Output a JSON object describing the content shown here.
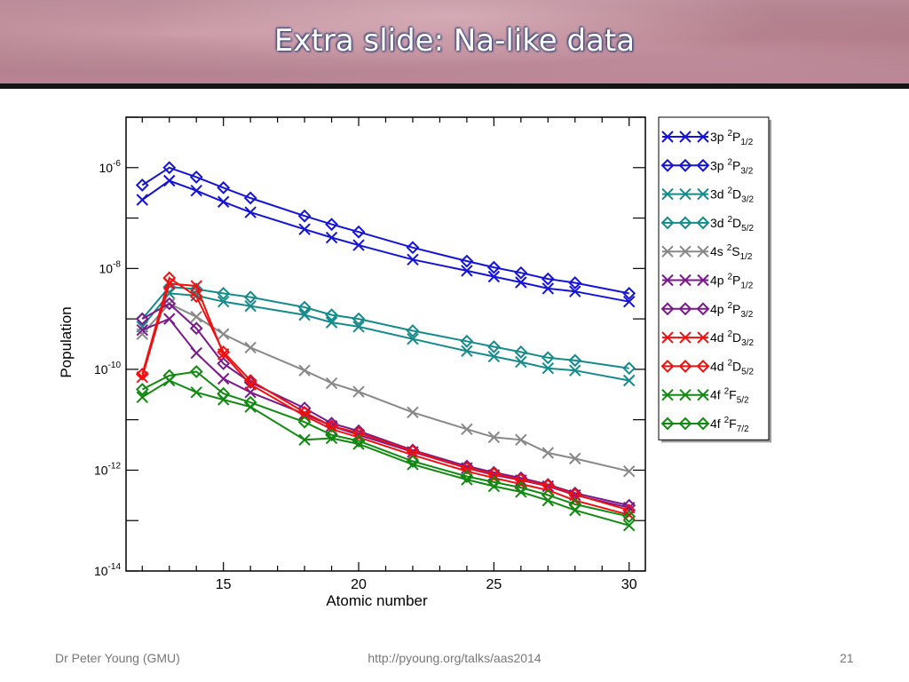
{
  "slide": {
    "title": "Extra slide: Na-like data",
    "footer_left": "Dr Peter Young (GMU)",
    "footer_center": "http://pyoung.org/talks/aas2014",
    "footer_right": "21"
  },
  "chart_data": {
    "type": "line",
    "xlabel": "Atomic number",
    "ylabel": "Population",
    "xlim": [
      11.4,
      30.6
    ],
    "ylim": [
      1e-14,
      1e-05
    ],
    "yscale": "log",
    "x_ticks": [
      15,
      20,
      25,
      30
    ],
    "y_tick_exponents": [
      -14,
      -12,
      -10,
      -8,
      -6
    ],
    "legend_position": "right, outside plot",
    "series": [
      {
        "name": "3p ²P₁/₂",
        "label": {
          "main": "3p ",
          "sup": "2",
          "letter": "P",
          "sub": "1/2"
        },
        "color": "#1414d2",
        "marker": "x",
        "x": [
          12,
          13,
          14,
          15,
          16,
          18,
          19,
          20,
          22,
          24,
          25,
          26,
          27,
          28,
          30
        ],
        "y": [
          2.3e-07,
          5.5e-07,
          3.5e-07,
          2.1e-07,
          1.3e-07,
          6e-08,
          4.1e-08,
          2.9e-08,
          1.5e-08,
          9e-09,
          6.9e-09,
          5.3e-09,
          4e-09,
          3.5e-09,
          2.2e-09
        ]
      },
      {
        "name": "3p ²P₃/₂",
        "label": {
          "main": "3p ",
          "sup": "2",
          "letter": "P",
          "sub": "3/2"
        },
        "color": "#1414d2",
        "marker": "diamond",
        "x": [
          12,
          13,
          14,
          15,
          16,
          18,
          19,
          20,
          22,
          24,
          25,
          26,
          27,
          28,
          30
        ],
        "y": [
          4.5e-07,
          1e-06,
          6.5e-07,
          4e-07,
          2.5e-07,
          1.1e-07,
          7.5e-08,
          5.3e-08,
          2.6e-08,
          1.4e-08,
          1.05e-08,
          8.2e-09,
          6.2e-09,
          5.2e-09,
          3.2e-09
        ]
      },
      {
        "name": "3d ²D₃/₂",
        "label": {
          "main": "3d ",
          "sup": "2",
          "letter": "D",
          "sub": "3/2"
        },
        "color": "#178a8a",
        "marker": "x",
        "x": [
          12,
          13,
          14,
          15,
          16,
          18,
          19,
          20,
          22,
          24,
          25,
          26,
          27,
          28,
          30
        ],
        "y": [
          7e-10,
          3.2e-09,
          2.9e-09,
          2.2e-09,
          1.8e-09,
          1.2e-09,
          8.5e-10,
          7e-10,
          4e-10,
          2.3e-10,
          1.8e-10,
          1.4e-10,
          1.05e-10,
          9.5e-11,
          6e-11
        ]
      },
      {
        "name": "3d ²D₅/₂",
        "label": {
          "main": "3d ",
          "sup": "2",
          "letter": "D",
          "sub": "5/2"
        },
        "color": "#178a8a",
        "marker": "diamond",
        "x": [
          12,
          13,
          14,
          15,
          16,
          18,
          19,
          20,
          22,
          24,
          25,
          26,
          27,
          28,
          30
        ],
        "y": [
          1e-09,
          4.3e-09,
          3.9e-09,
          3.2e-09,
          2.7e-09,
          1.7e-09,
          1.2e-09,
          1e-09,
          5.8e-10,
          3.6e-10,
          2.8e-10,
          2.2e-10,
          1.7e-10,
          1.5e-10,
          1.05e-10
        ]
      },
      {
        "name": "4s ²S₁/₂",
        "label": {
          "main": "4s ",
          "sup": "2",
          "letter": "S",
          "sub": "1/2"
        },
        "color": "#888888",
        "marker": "x",
        "x": [
          12,
          13,
          14,
          15,
          16,
          18,
          19,
          20,
          22,
          24,
          25,
          26,
          27,
          28,
          30
        ],
        "y": [
          5e-10,
          2e-09,
          1.1e-09,
          5e-10,
          2.7e-10,
          9.5e-11,
          5.3e-11,
          3.6e-11,
          1.4e-11,
          6.5e-12,
          4.5e-12,
          4e-12,
          2.2e-12,
          1.7e-12,
          9.5e-13
        ]
      },
      {
        "name": "4p ²P₁/₂",
        "label": {
          "main": "4p ",
          "sup": "2",
          "letter": "P",
          "sub": "1/2"
        },
        "color": "#7a1a8a",
        "marker": "x",
        "x": [
          12,
          13,
          14,
          15,
          16,
          18,
          19,
          20,
          22,
          24,
          25,
          26,
          27,
          28,
          30
        ],
        "y": [
          6e-10,
          1e-09,
          2.1e-10,
          6.5e-11,
          3.5e-11,
          1.3e-11,
          7.5e-12,
          5e-12,
          2.3e-12,
          1.1e-12,
          8e-13,
          6.3e-13,
          4.8e-13,
          3.2e-13,
          1.8e-13
        ]
      },
      {
        "name": "4p ²P₃/₂",
        "label": {
          "main": "4p ",
          "sup": "2",
          "letter": "P",
          "sub": "3/2"
        },
        "color": "#7a1a8a",
        "marker": "diamond",
        "x": [
          12,
          13,
          14,
          15,
          16,
          18,
          19,
          20,
          22,
          24,
          25,
          26,
          27,
          28,
          30
        ],
        "y": [
          1e-09,
          2e-09,
          6.5e-10,
          1.3e-10,
          5.5e-11,
          1.7e-11,
          8.5e-12,
          6e-12,
          2.5e-12,
          1.2e-12,
          9e-13,
          7e-13,
          5.2e-13,
          3.5e-13,
          2e-13
        ]
      },
      {
        "name": "4d ²D₃/₂",
        "label": {
          "main": "4d ",
          "sup": "2",
          "letter": "D",
          "sub": "3/2"
        },
        "color": "#ee1111",
        "marker": "x",
        "x": [
          12,
          13,
          14,
          15,
          16,
          18,
          19,
          20,
          22,
          24,
          25,
          26,
          27,
          28,
          30
        ],
        "y": [
          7e-11,
          5e-09,
          4.5e-09,
          2e-10,
          5e-11,
          1.2e-11,
          6.5e-12,
          4.5e-12,
          2e-12,
          9.5e-13,
          7e-13,
          5.3e-13,
          4e-13,
          2.5e-13,
          1.3e-13
        ]
      },
      {
        "name": "4d ²D₅/₂",
        "label": {
          "main": "4d ",
          "sup": "2",
          "letter": "D",
          "sub": "5/2"
        },
        "color": "#ee1111",
        "marker": "diamond",
        "x": [
          12,
          13,
          14,
          15,
          16,
          18,
          19,
          20,
          22,
          24,
          25,
          26,
          27,
          28,
          30
        ],
        "y": [
          8e-11,
          6.5e-09,
          2.8e-09,
          2.2e-10,
          6e-11,
          1.4e-11,
          7.5e-12,
          5.5e-12,
          2.4e-12,
          1.1e-12,
          8.5e-13,
          6.5e-13,
          5e-13,
          3.3e-13,
          1.6e-13
        ]
      },
      {
        "name": "4f ²F₅/₂",
        "label": {
          "main": "4f ",
          "sup": "2",
          "letter": "F",
          "sub": "5/2"
        },
        "color": "#128a12",
        "marker": "x",
        "x": [
          12,
          13,
          14,
          15,
          16,
          18,
          19,
          20,
          22,
          24,
          25,
          26,
          27,
          28,
          30
        ],
        "y": [
          2.8e-11,
          6e-11,
          3.5e-11,
          2.5e-11,
          1.8e-11,
          4e-12,
          4.3e-12,
          3.3e-12,
          1.3e-12,
          6.5e-13,
          4.8e-13,
          3.7e-13,
          2.5e-13,
          1.6e-13,
          8e-14
        ]
      },
      {
        "name": "4f ²F₇/₂",
        "label": {
          "main": "4f ",
          "sup": "2",
          "letter": "F",
          "sub": "7/2"
        },
        "color": "#128a12",
        "marker": "diamond",
        "x": [
          12,
          13,
          14,
          15,
          16,
          18,
          19,
          20,
          22,
          24,
          25,
          26,
          27,
          28,
          30
        ],
        "y": [
          4e-11,
          7.5e-11,
          9e-11,
          3.3e-11,
          2.2e-11,
          9e-12,
          5e-12,
          3.8e-12,
          1.5e-12,
          7.5e-13,
          5.8e-13,
          4.5e-13,
          3.2e-13,
          2.1e-13,
          1.2e-13
        ]
      }
    ]
  }
}
